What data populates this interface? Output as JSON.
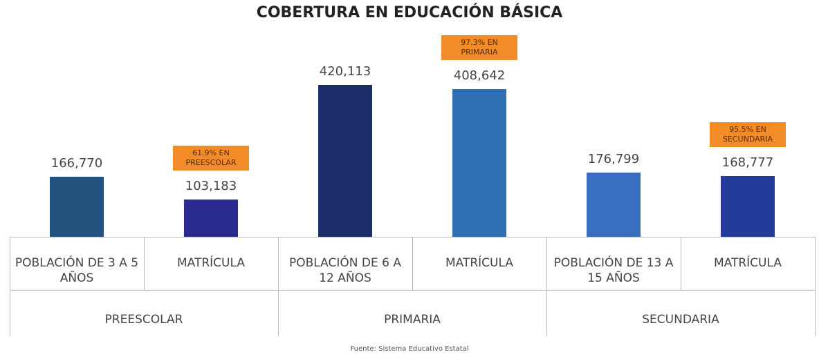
{
  "chart_data": {
    "type": "bar",
    "title": "COBERTURA EN EDUCACIÓN BÁSICA",
    "categories": [
      "POBLACIÓN DE 3 A 5 AÑOS",
      "MATRÍCULA",
      "POBLACIÓN DE 6 A 12 AÑOS",
      "MATRÍCULA",
      "POBLACIÓN DE 13 A 15 AÑOS",
      "MATRÍCULA"
    ],
    "groups": [
      "PREESCOLAR",
      "PRIMARIA",
      "SECUNDARIA"
    ],
    "values": [
      166770,
      103183,
      420113,
      408642,
      176799,
      168777
    ],
    "value_labels": [
      "166,770",
      "103,183",
      "420,113",
      "408,642",
      "176,799",
      "168,777"
    ],
    "colors": [
      "#24527e",
      "#2b2a8f",
      "#1c2f6b",
      "#2f6fb3",
      "#3a6fc0",
      "#233c99"
    ],
    "annotations": [
      null,
      "61.9% EN PREESCOLAR",
      null,
      "97.3% EN PRIMARIA",
      null,
      "95.5% EN SECUNDARIA"
    ],
    "source": "Fuente: Sistema Educativo Estatal"
  }
}
